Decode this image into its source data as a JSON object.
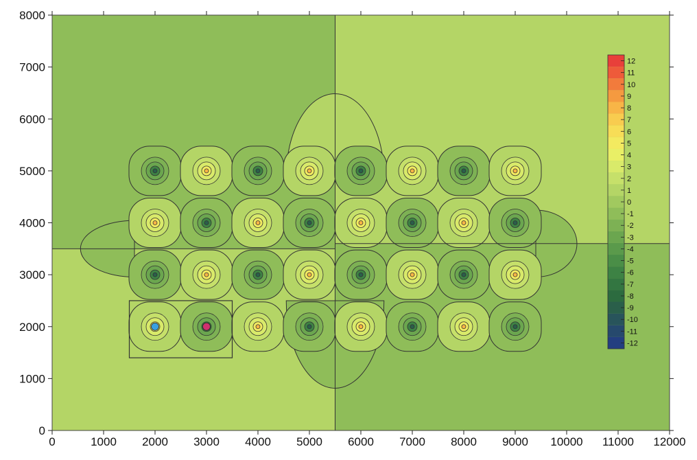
{
  "chart_data": {
    "type": "heatmap",
    "title": "",
    "xlabel": "",
    "ylabel": "",
    "xlim": [
      0,
      12000
    ],
    "ylim": [
      0,
      8000
    ],
    "x_ticks": [
      0,
      1000,
      2000,
      3000,
      4000,
      5000,
      6000,
      7000,
      8000,
      9000,
      10000,
      11000,
      12000
    ],
    "y_ticks": [
      0,
      1000,
      2000,
      3000,
      4000,
      5000,
      6000,
      7000,
      8000
    ],
    "x_tick_labels": [
      "0",
      "1000",
      "2000",
      "3000",
      "4000",
      "5000",
      "6000",
      "7000",
      "8000",
      "9000",
      "10000",
      "11000",
      "12000"
    ],
    "y_tick_labels": [
      "0",
      "1000",
      "2000",
      "3000",
      "4000",
      "5000",
      "6000",
      "7000",
      "8000"
    ],
    "colorbar": {
      "levels": [
        12,
        11,
        10,
        9,
        8,
        7,
        6,
        5,
        4,
        3,
        2,
        1,
        0,
        -1,
        -2,
        -3,
        -4,
        -5,
        -6,
        -7,
        -8,
        -9,
        -10,
        -11,
        -12
      ],
      "labels": [
        "12",
        "11",
        "10",
        "9",
        "8",
        "7",
        "6",
        "5",
        "4",
        "3",
        "2",
        "1",
        "0",
        "-1",
        "-2",
        "-3",
        "-4",
        "-5",
        "-6",
        "-7",
        "-8",
        "-9",
        "-10",
        "-11",
        "-12"
      ],
      "colors": [
        "#e8403a",
        "#ee5b3a",
        "#f27b3c",
        "#f59a40",
        "#f8b547",
        "#f8cc4f",
        "#f7dd57",
        "#f3ea60",
        "#e9ef66",
        "#d9ea6a",
        "#c6e06a",
        "#b4d566",
        "#a1c95f",
        "#8fbd59",
        "#7db154",
        "#6ba64f",
        "#5a9a4b",
        "#4a8e47",
        "#3d8244",
        "#337641",
        "#2c6b3f",
        "#2a5f4a",
        "#28545b",
        "#26496d",
        "#233e80"
      ]
    },
    "background_regions": [
      {
        "x": [
          0,
          5500
        ],
        "y": [
          3500,
          8000
        ],
        "value": -1
      },
      {
        "x": [
          5500,
          12000
        ],
        "y": [
          3600,
          8000
        ],
        "value": 1
      },
      {
        "x": [
          0,
          5500
        ],
        "y": [
          0,
          3500
        ],
        "value": 1
      },
      {
        "x": [
          5500,
          12000
        ],
        "y": [
          0,
          3600
        ],
        "value": -1
      }
    ],
    "sources": [
      {
        "x": 2000,
        "y": 5000,
        "polarity": -1
      },
      {
        "x": 3000,
        "y": 5000,
        "polarity": 1
      },
      {
        "x": 4000,
        "y": 5000,
        "polarity": -1
      },
      {
        "x": 5000,
        "y": 5000,
        "polarity": 1
      },
      {
        "x": 6000,
        "y": 5000,
        "polarity": -1
      },
      {
        "x": 7000,
        "y": 5000,
        "polarity": 1
      },
      {
        "x": 8000,
        "y": 5000,
        "polarity": -1
      },
      {
        "x": 9000,
        "y": 5000,
        "polarity": 1
      },
      {
        "x": 2000,
        "y": 4000,
        "polarity": 1
      },
      {
        "x": 3000,
        "y": 4000,
        "polarity": -1
      },
      {
        "x": 4000,
        "y": 4000,
        "polarity": 1
      },
      {
        "x": 5000,
        "y": 4000,
        "polarity": -1
      },
      {
        "x": 6000,
        "y": 4000,
        "polarity": 1
      },
      {
        "x": 7000,
        "y": 4000,
        "polarity": -1
      },
      {
        "x": 8000,
        "y": 4000,
        "polarity": 1
      },
      {
        "x": 9000,
        "y": 4000,
        "polarity": -1
      },
      {
        "x": 2000,
        "y": 3000,
        "polarity": -1
      },
      {
        "x": 3000,
        "y": 3000,
        "polarity": 1
      },
      {
        "x": 4000,
        "y": 3000,
        "polarity": -1
      },
      {
        "x": 5000,
        "y": 3000,
        "polarity": 1
      },
      {
        "x": 6000,
        "y": 3000,
        "polarity": -1
      },
      {
        "x": 7000,
        "y": 3000,
        "polarity": 1
      },
      {
        "x": 8000,
        "y": 3000,
        "polarity": -1
      },
      {
        "x": 9000,
        "y": 3000,
        "polarity": 1
      },
      {
        "x": 2000,
        "y": 2000,
        "polarity": 1
      },
      {
        "x": 3000,
        "y": 2000,
        "polarity": -1
      },
      {
        "x": 4000,
        "y": 2000,
        "polarity": 1
      },
      {
        "x": 5000,
        "y": 2000,
        "polarity": -1
      },
      {
        "x": 6000,
        "y": 2000,
        "polarity": 1
      },
      {
        "x": 7000,
        "y": 2000,
        "polarity": -1
      },
      {
        "x": 8000,
        "y": 2000,
        "polarity": 1
      },
      {
        "x": 9000,
        "y": 2000,
        "polarity": -1
      }
    ],
    "highlight_markers": [
      {
        "x": 2000,
        "y": 2000,
        "color": "#3aa0e0"
      },
      {
        "x": 3000,
        "y": 2000,
        "color": "#d0306e"
      }
    ],
    "highlight_box": {
      "x": [
        1500,
        3500
      ],
      "y": [
        1400,
        2500
      ]
    },
    "divider_lines": {
      "vertical_x": 5500,
      "horizontal_y_left": 3500,
      "horizontal_y_right": 3600
    },
    "grid": false,
    "legend": "colorbar right"
  }
}
